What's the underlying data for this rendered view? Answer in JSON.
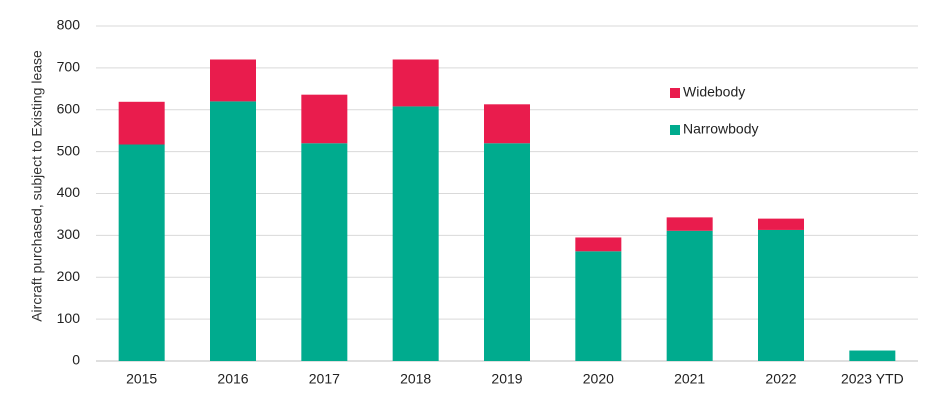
{
  "chart_data": {
    "type": "bar",
    "stacked": true,
    "categories": [
      "2015",
      "2016",
      "2017",
      "2018",
      "2019",
      "2020",
      "2021",
      "2022",
      "2023 YTD"
    ],
    "series": [
      {
        "name": "Narrowbody",
        "color": "#00ab8e",
        "values": [
          517,
          620,
          520,
          608,
          520,
          262,
          311,
          313,
          25
        ]
      },
      {
        "name": "Widebody",
        "color": "#e91c4d",
        "values": [
          102,
          100,
          116,
          112,
          93,
          33,
          32,
          27,
          0
        ]
      }
    ],
    "title": "",
    "xlabel": "",
    "ylabel": "Aircraft purchased, subject to Existing lease",
    "ylim": [
      0,
      800
    ],
    "yticks": [
      0,
      100,
      200,
      300,
      400,
      500,
      600,
      700,
      800
    ],
    "grid": true,
    "legend_position": "top-right",
    "legend_order": [
      "Widebody",
      "Narrowbody"
    ]
  }
}
